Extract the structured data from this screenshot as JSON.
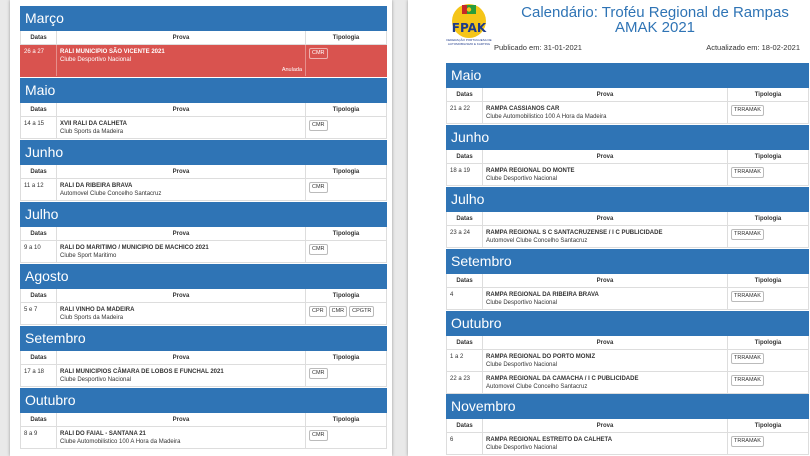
{
  "left": {
    "months": [
      {
        "name": "Março",
        "events": [
          {
            "dates": "26 a 27",
            "name": "RALI MUNICIPIO SÃO VICENTE 2021",
            "club": "Clube Desportivo Nacional",
            "tags": [
              "CMR"
            ],
            "status": "Anulada"
          }
        ]
      },
      {
        "name": "Maio",
        "events": [
          {
            "dates": "14 a 15",
            "name": "XVII RALI DA CALHETA",
            "club": "Club Sports da Madeira",
            "tags": [
              "CMR"
            ]
          }
        ]
      },
      {
        "name": "Junho",
        "events": [
          {
            "dates": "11 a 12",
            "name": "RALI DA RIBEIRA BRAVA",
            "club": "Automovel Clube Concelho Santacruz",
            "tags": [
              "CMR"
            ]
          }
        ]
      },
      {
        "name": "Julho",
        "events": [
          {
            "dates": "9 a 10",
            "name": "RALI DO MARITIMO / MUNICIPIO DE MACHICO 2021",
            "club": "Clube Sport Maritimo",
            "tags": [
              "CMR"
            ]
          }
        ]
      },
      {
        "name": "Agosto",
        "events": [
          {
            "dates": "5 e 7",
            "name": "RALI VINHO DA MADEIRA",
            "club": "Club Sports da Madeira",
            "tags": [
              "CPR",
              "CMR",
              "CPGTR"
            ]
          }
        ]
      },
      {
        "name": "Setembro",
        "events": [
          {
            "dates": "17 a 18",
            "name": "RALI MUNICIPIOS CÂMARA DE LOBOS E FUNCHAL 2021",
            "club": "Clube Desportivo Nacional",
            "tags": [
              "CMR"
            ]
          }
        ]
      },
      {
        "name": "Outubro",
        "events": [
          {
            "dates": "8 a 9",
            "name": "RALI DO FAIAL - SANTANA 21",
            "club": "Clube Automobilistico 100 A Hora da Madeira",
            "tags": [
              "CMR"
            ]
          }
        ]
      }
    ]
  },
  "right": {
    "logo": {
      "letters": "FPAK",
      "caption": "FEDERAÇÃO PORTUGUESA DE AUTOMOBILISMO E KARTING"
    },
    "title": "Calendário: Troféu Regional de Rampas AMAK 2021",
    "published": "Publicado em: 31-01-2021",
    "updated": "Actualizado em: 18-02-2021",
    "months": [
      {
        "name": "Maio",
        "events": [
          {
            "dates": "21 a 22",
            "name": "RAMPA CASSIANOS CAR",
            "club": "Clube Automobilistico 100 A Hora da Madeira",
            "tags": [
              "TRRAMAK"
            ]
          }
        ]
      },
      {
        "name": "Junho",
        "events": [
          {
            "dates": "18 a 19",
            "name": "RAMPA REGIONAL DO MONTE",
            "club": "Clube Desportivo Nacional",
            "tags": [
              "TRRAMAK"
            ]
          }
        ]
      },
      {
        "name": "Julho",
        "events": [
          {
            "dates": "23 a 24",
            "name": "RAMPA REGIONAL S C SANTACRUZENSE / I C PUBLICIDADE",
            "club": "Automovel Clube Concelho Santacruz",
            "tags": [
              "TRRAMAK"
            ]
          }
        ]
      },
      {
        "name": "Setembro",
        "events": [
          {
            "dates": "4",
            "name": "RAMPA REGIONAL DA RIBEIRA BRAVA",
            "club": "Clube Desportivo Nacional",
            "tags": [
              "TRRAMAK"
            ]
          }
        ]
      },
      {
        "name": "Outubro",
        "events": [
          {
            "dates": "1 a 2",
            "name": "RAMPA REGIONAL DO PORTO MONIZ",
            "club": "Clube Desportivo Nacional",
            "tags": [
              "TRRAMAK"
            ]
          },
          {
            "dates": "22 a 23",
            "name": "RAMPA REGIONAL DA CAMACHA / I C PUBLICIDADE",
            "club": "Automovel Clube Concelho Santacruz",
            "tags": [
              "TRRAMAK"
            ]
          }
        ]
      },
      {
        "name": "Novembro",
        "events": [
          {
            "dates": "6",
            "name": "RAMPA REGIONAL ESTREITO DA CALHETA",
            "club": "Clube Desportivo Nacional",
            "tags": [
              "TRRAMAK"
            ]
          }
        ]
      }
    ]
  },
  "table_headers": {
    "dates": "Datas",
    "event": "Prova",
    "type": "Tipologia"
  },
  "colors": {
    "month_header": "#2f74b5",
    "cancelled_row": "#d9534f"
  }
}
